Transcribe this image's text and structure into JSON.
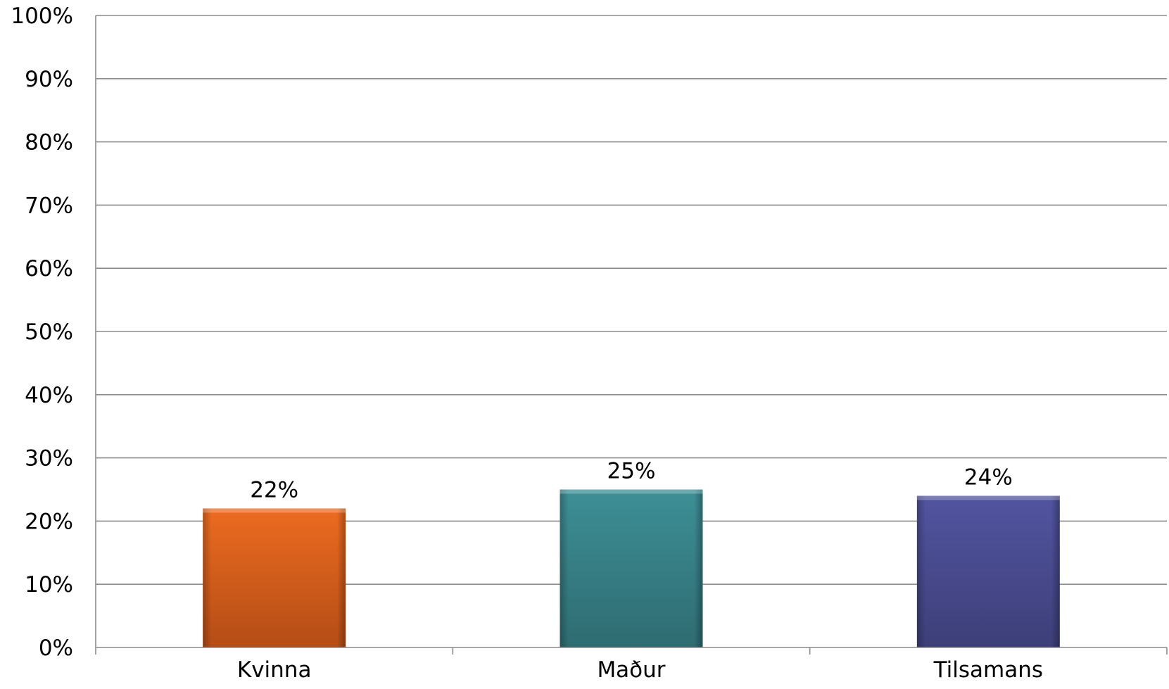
{
  "chart_data": {
    "type": "bar",
    "title": "",
    "xlabel": "",
    "ylabel": "",
    "categories": [
      "Kvinna",
      "Maður",
      "Tilsamans"
    ],
    "values": [
      22,
      25,
      24
    ],
    "data_labels": [
      "22%",
      "25%",
      "24%"
    ],
    "ylim": [
      0,
      100
    ],
    "yticks": [
      0,
      10,
      20,
      30,
      40,
      50,
      60,
      70,
      80,
      90,
      100
    ],
    "ytick_labels": [
      "0%",
      "10%",
      "20%",
      "30%",
      "40%",
      "50%",
      "60%",
      "70%",
      "80%",
      "90%",
      "100%"
    ],
    "grid": true,
    "legend": "none",
    "colors": [
      {
        "top": "#ec6b20",
        "bottom": "#b44d16"
      },
      {
        "top": "#3d8f96",
        "bottom": "#2e6c71"
      },
      {
        "top": "#5254a0",
        "bottom": "#3d3f79"
      }
    ],
    "gridline_color": "#8c8c8c"
  }
}
